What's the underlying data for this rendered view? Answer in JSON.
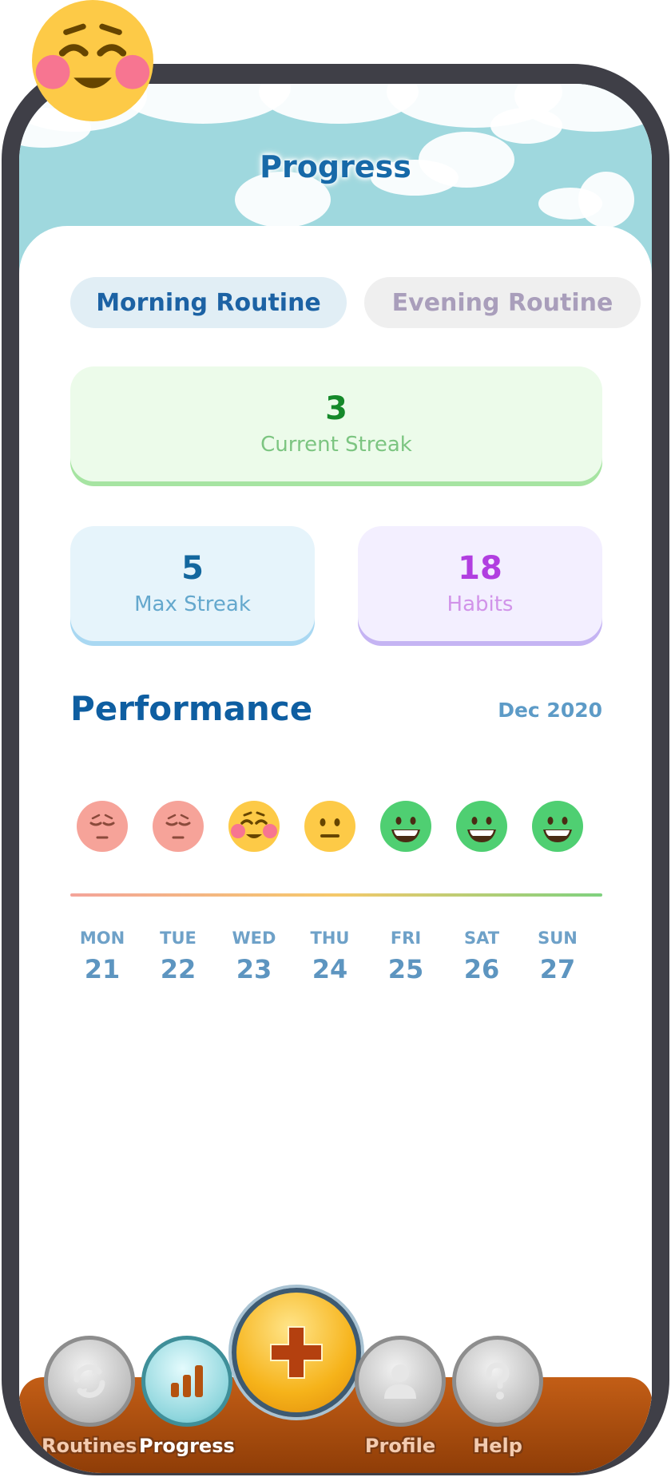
{
  "header": {
    "title": "Progress"
  },
  "tabs": [
    {
      "label": "Morning Routine",
      "active": true
    },
    {
      "label": "Evening Routine",
      "active": false
    }
  ],
  "stats": {
    "current_streak": {
      "value": "3",
      "label": "Current Streak"
    },
    "max_streak": {
      "value": "5",
      "label": "Max Streak"
    },
    "habits": {
      "value": "18",
      "label": "Habits"
    }
  },
  "performance": {
    "title": "Performance",
    "month": "Dec 2020",
    "days": [
      {
        "name": "MON",
        "date": "21",
        "mood": "sad-face-icon"
      },
      {
        "name": "TUE",
        "date": "22",
        "mood": "sad-face-icon"
      },
      {
        "name": "WED",
        "date": "23",
        "mood": "blushing-face-icon"
      },
      {
        "name": "THU",
        "date": "24",
        "mood": "neutral-face-icon"
      },
      {
        "name": "FRI",
        "date": "25",
        "mood": "grinning-face-icon"
      },
      {
        "name": "SAT",
        "date": "26",
        "mood": "grinning-face-icon"
      },
      {
        "name": "SUN",
        "date": "27",
        "mood": "grinning-face-icon"
      }
    ]
  },
  "nav": {
    "routines": "Routines",
    "progress": "Progress",
    "profile": "Profile",
    "help": "Help"
  },
  "colors": {
    "accent": "#1769a8",
    "sky": "#9fd8de",
    "wood": "#b4520f",
    "add_button": "#f6b31a"
  }
}
